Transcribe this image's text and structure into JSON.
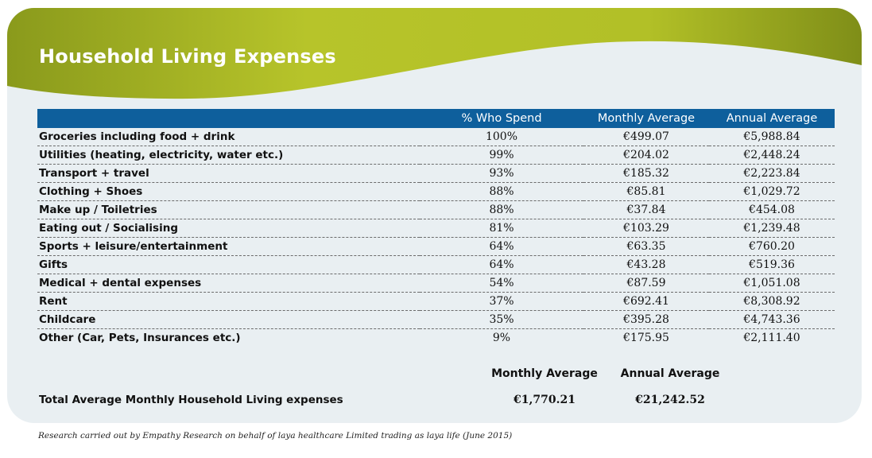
{
  "title": "Household Living Expenses",
  "colors": {
    "banner_green_light": "#b7c42a",
    "banner_green_dark": "#8a9a1c",
    "header_blue": "#0e5f9c",
    "card_background": "#e9eff2"
  },
  "table": {
    "headers": {
      "category": "",
      "percent": "% Who Spend",
      "monthly": "Monthly Average",
      "annual": "Annual Average"
    },
    "rows": [
      {
        "category": "Groceries including food + drink",
        "percent": "100%",
        "monthly": "€499.07",
        "annual": "€5,988.84"
      },
      {
        "category": "Utilities (heating, electricity, water etc.)",
        "percent": "99%",
        "monthly": "€204.02",
        "annual": "€2,448.24"
      },
      {
        "category": "Transport + travel",
        "percent": "93%",
        "monthly": "€185.32",
        "annual": "€2,223.84"
      },
      {
        "category": "Clothing + Shoes",
        "percent": "88%",
        "monthly": "€85.81",
        "annual": "€1,029.72"
      },
      {
        "category": "Make up / Toiletries",
        "percent": "88%",
        "monthly": "€37.84",
        "annual": "€454.08"
      },
      {
        "category": "Eating out / Socialising",
        "percent": "81%",
        "monthly": "€103.29",
        "annual": "€1,239.48"
      },
      {
        "category": "Sports + leisure/entertainment",
        "percent": "64%",
        "monthly": "€63.35",
        "annual": "€760.20"
      },
      {
        "category": "Gifts",
        "percent": "64%",
        "monthly": "€43.28",
        "annual": "€519.36"
      },
      {
        "category": "Medical + dental expenses",
        "percent": "54%",
        "monthly": "€87.59",
        "annual": "€1,051.08"
      },
      {
        "category": "Rent",
        "percent": "37%",
        "monthly": "€692.41",
        "annual": "€8,308.92"
      },
      {
        "category": "Childcare",
        "percent": "35%",
        "monthly": "€395.28",
        "annual": "€4,743.36"
      },
      {
        "category": "Other (Car, Pets, Insurances etc.)",
        "percent": "9%",
        "monthly": "€175.95",
        "annual": "€2,111.40"
      }
    ]
  },
  "totals": {
    "monthly_header": "Monthly Average",
    "annual_header": "Annual Average",
    "label": "Total Average Monthly Household Living expenses",
    "monthly_value": "€1,770.21",
    "annual_value": "€21,242.52"
  },
  "footnote": "Research carried out by Empathy Research on behalf of laya healthcare Limited trading as laya life (June 2015)"
}
